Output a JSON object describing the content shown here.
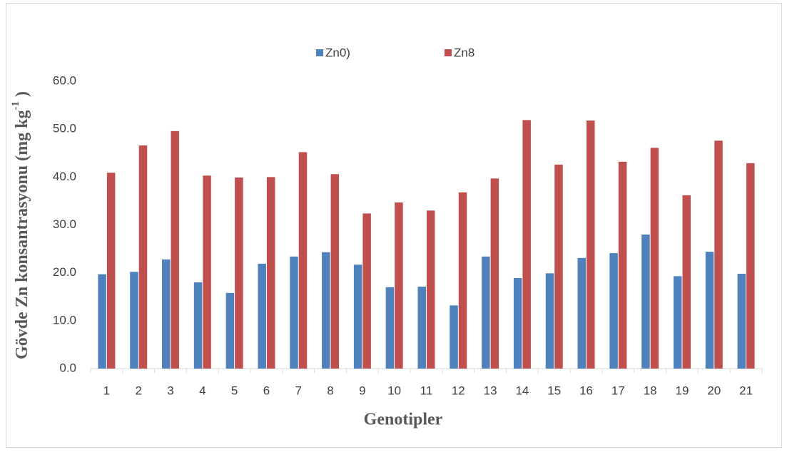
{
  "chart_data": {
    "type": "bar",
    "ylabel": {
      "text": "Gövde  Zn konsantrasyonu (mg  kg",
      "sup": "-1",
      "end": " )"
    },
    "xlabel": "Genotipler",
    "categories": [
      "1",
      "2",
      "3",
      "4",
      "5",
      "6",
      "7",
      "8",
      "9",
      "10",
      "11",
      "12",
      "13",
      "14",
      "15",
      "16",
      "17",
      "18",
      "19",
      "20",
      "21"
    ],
    "series": [
      {
        "name": "Zn0)",
        "color": "#4f81bd",
        "values": [
          19.7,
          20.2,
          22.8,
          18.0,
          15.8,
          21.9,
          23.4,
          24.3,
          21.7,
          17.0,
          17.1,
          13.2,
          23.4,
          18.9,
          19.9,
          23.1,
          24.1,
          28.0,
          19.3,
          24.4,
          19.8
        ]
      },
      {
        "name": "Zn8",
        "color": "#c0504d",
        "values": [
          40.9,
          46.6,
          49.6,
          40.3,
          39.9,
          40.0,
          45.2,
          40.6,
          32.4,
          34.7,
          33.0,
          36.8,
          39.7,
          51.9,
          42.6,
          51.8,
          43.2,
          46.1,
          36.2,
          47.6,
          42.9
        ]
      }
    ],
    "ylim": [
      0,
      60
    ],
    "yticks": [
      {
        "value": 0,
        "label": "0.0"
      },
      {
        "value": 10,
        "label": "10.0"
      },
      {
        "value": 20,
        "label": "20.0"
      },
      {
        "value": 30,
        "label": "30.0"
      },
      {
        "value": 40,
        "label": "40.0"
      },
      {
        "value": 50,
        "label": "50.0"
      },
      {
        "value": 60,
        "label": "60.0"
      }
    ],
    "grid": false,
    "legend": "top"
  }
}
